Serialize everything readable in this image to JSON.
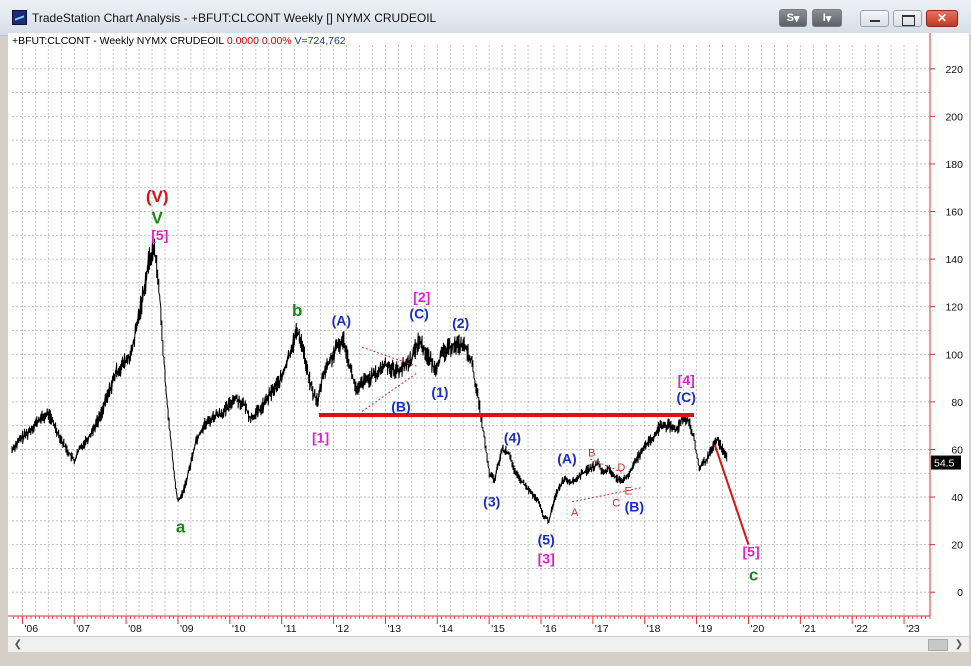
{
  "window": {
    "title": "TradeStation Chart Analysis - +BFUT:CLCONT Weekly [] NYMX CRUDEOIL",
    "btn_s": "S",
    "btn_i": "I",
    "price_badge": "54.5"
  },
  "info": {
    "symbol": "+BFUT:CLCONT - Weekly  NYMX CRUDEOIL",
    "change": "0.0000  0.00%",
    "volume": "V=724,762"
  },
  "colors": {
    "grid": "#b8b8b8",
    "axis": "#e03030",
    "price": "#000000",
    "wave_red": "#dd1111",
    "wave_green": "#138a13",
    "wave_blue": "#1a2bd0",
    "wave_magenta": "#e020d0",
    "sub_red": "#d03030"
  },
  "chart_data": {
    "type": "line",
    "title": "",
    "xlabel": "",
    "ylabel": "",
    "ylim": [
      -10,
      230
    ],
    "xlim": [
      2005.8,
      2023.5
    ],
    "yticks": [
      0,
      20,
      40,
      60,
      80,
      100,
      120,
      140,
      160,
      180,
      200,
      220
    ],
    "xticks": [
      {
        "x": 2006,
        "label": "'06"
      },
      {
        "x": 2007,
        "label": "'07"
      },
      {
        "x": 2008,
        "label": "'08"
      },
      {
        "x": 2009,
        "label": "'09"
      },
      {
        "x": 2010,
        "label": "'10"
      },
      {
        "x": 2011,
        "label": "'11"
      },
      {
        "x": 2012,
        "label": "'12"
      },
      {
        "x": 2013,
        "label": "'13"
      },
      {
        "x": 2014,
        "label": "'14"
      },
      {
        "x": 2015,
        "label": "'15"
      },
      {
        "x": 2016,
        "label": "'16"
      },
      {
        "x": 2017,
        "label": "'17"
      },
      {
        "x": 2018,
        "label": "'18"
      },
      {
        "x": 2019,
        "label": "'19"
      },
      {
        "x": 2020,
        "label": "'20"
      },
      {
        "x": 2021,
        "label": "'21"
      },
      {
        "x": 2022,
        "label": "'22"
      },
      {
        "x": 2023,
        "label": "'23"
      }
    ],
    "series": [
      {
        "x": [
          2005.8,
          2005.95,
          2006.1,
          2006.3,
          2006.5,
          2006.6,
          2006.8,
          2007.0,
          2007.1,
          2007.3,
          2007.5,
          2007.6,
          2007.8,
          2007.95,
          2008.1,
          2008.3,
          2008.45,
          2008.55,
          2008.65,
          2008.75,
          2008.85,
          2008.95,
          2009.0,
          2009.1,
          2009.2,
          2009.35,
          2009.5,
          2009.7,
          2009.9,
          2010.1,
          2010.3,
          2010.4,
          2010.6,
          2010.8,
          2011.0,
          2011.15,
          2011.3,
          2011.4,
          2011.5,
          2011.6,
          2011.7,
          2011.8,
          2011.95,
          2012.1,
          2012.2,
          2012.35,
          2012.45,
          2012.55,
          2012.7,
          2012.85,
          2013.0,
          2013.2,
          2013.3,
          2013.5,
          2013.65,
          2013.8,
          2013.95,
          2014.1,
          2014.3,
          2014.5,
          2014.65,
          2014.8,
          2014.9,
          2015.0,
          2015.1,
          2015.25,
          2015.4,
          2015.5,
          2015.65,
          2015.8,
          2015.95,
          2016.05,
          2016.15,
          2016.3,
          2016.45,
          2016.6,
          2016.8,
          2016.95,
          2017.1,
          2017.2,
          2017.3,
          2017.45,
          2017.55,
          2017.7,
          2017.85,
          2018.0,
          2018.15,
          2018.3,
          2018.45,
          2018.6,
          2018.75,
          2018.85,
          2018.95,
          2019.05,
          2019.2,
          2019.3,
          2019.4,
          2019.5,
          2019.6
        ],
        "y": [
          60,
          64,
          67,
          72,
          75,
          71,
          62,
          55,
          60,
          66,
          74,
          80,
          92,
          96,
          100,
          122,
          140,
          145,
          124,
          90,
          66,
          45,
          38,
          42,
          50,
          64,
          70,
          74,
          76,
          82,
          78,
          73,
          77,
          84,
          90,
          100,
          110,
          104,
          92,
          84,
          80,
          92,
          98,
          104,
          106,
          92,
          84,
          88,
          90,
          92,
          96,
          93,
          94,
          98,
          106,
          100,
          94,
          100,
          104,
          104,
          98,
          80,
          66,
          50,
          47,
          60,
          58,
          50,
          46,
          42,
          38,
          32,
          30,
          42,
          48,
          46,
          50,
          52,
          54,
          50,
          52,
          48,
          46,
          50,
          56,
          62,
          64,
          70,
          70,
          68,
          74,
          72,
          64,
          52,
          56,
          60,
          64,
          60,
          56
        ]
      }
    ],
    "annotations": [
      {
        "text": "(V)",
        "x": 2008.6,
        "y": 164,
        "color": "red",
        "size": "large"
      },
      {
        "text": "V",
        "x": 2008.6,
        "y": 155,
        "color": "green",
        "size": "large"
      },
      {
        "text": "[5]",
        "x": 2008.65,
        "y": 148,
        "color": "magenta"
      },
      {
        "text": "a",
        "x": 2009.05,
        "y": 25,
        "color": "green",
        "size": "large"
      },
      {
        "text": "b",
        "x": 2011.3,
        "y": 116,
        "color": "green",
        "size": "large"
      },
      {
        "text": "[1]",
        "x": 2011.75,
        "y": 63,
        "color": "magenta"
      },
      {
        "text": "(A)",
        "x": 2012.15,
        "y": 112,
        "color": "blue"
      },
      {
        "text": "(B)",
        "x": 2013.3,
        "y": 76,
        "color": "blue"
      },
      {
        "text": "[2]",
        "x": 2013.7,
        "y": 122,
        "color": "magenta"
      },
      {
        "text": "(C)",
        "x": 2013.65,
        "y": 115,
        "color": "blue"
      },
      {
        "text": "(1)",
        "x": 2014.05,
        "y": 82,
        "color": "blue"
      },
      {
        "text": "(2)",
        "x": 2014.45,
        "y": 111,
        "color": "blue"
      },
      {
        "text": "(3)",
        "x": 2015.05,
        "y": 36,
        "color": "blue"
      },
      {
        "text": "(4)",
        "x": 2015.45,
        "y": 63,
        "color": "blue"
      },
      {
        "text": "(5)",
        "x": 2016.1,
        "y": 20,
        "color": "blue"
      },
      {
        "text": "[3]",
        "x": 2016.1,
        "y": 12,
        "color": "magenta"
      },
      {
        "text": "(A)",
        "x": 2016.5,
        "y": 54,
        "color": "blue"
      },
      {
        "text": "A",
        "x": 2016.65,
        "y": 32,
        "color": "red",
        "size": "small"
      },
      {
        "text": "B",
        "x": 2016.98,
        "y": 57,
        "color": "red",
        "size": "small"
      },
      {
        "text": "D",
        "x": 2017.55,
        "y": 51,
        "color": "red",
        "size": "small"
      },
      {
        "text": "C",
        "x": 2017.45,
        "y": 36,
        "color": "red",
        "size": "small"
      },
      {
        "text": "E",
        "x": 2017.68,
        "y": 41,
        "color": "red",
        "size": "small"
      },
      {
        "text": "(B)",
        "x": 2017.8,
        "y": 34,
        "color": "blue"
      },
      {
        "text": "[4]",
        "x": 2018.8,
        "y": 87,
        "color": "magenta"
      },
      {
        "text": "(C)",
        "x": 2018.8,
        "y": 80,
        "color": "blue"
      },
      {
        "text": "[5]",
        "x": 2020.05,
        "y": 15,
        "color": "magenta"
      },
      {
        "text": "c",
        "x": 2020.1,
        "y": 5,
        "color": "green",
        "size": "large"
      }
    ],
    "lines": [
      {
        "x1": 2011.72,
        "y1": 74.5,
        "x2": 2018.95,
        "y2": 74.5,
        "color": "red",
        "width": 4
      },
      {
        "x1": 2019.35,
        "y1": 62,
        "x2": 2020.0,
        "y2": 20,
        "color": "red",
        "width": 2
      },
      {
        "x1": 2012.55,
        "y1": 103,
        "x2": 2013.6,
        "y2": 95,
        "color": "red",
        "dash": true
      },
      {
        "x1": 2012.55,
        "y1": 76,
        "x2": 2013.6,
        "y2": 92,
        "color": "red",
        "dash": true
      },
      {
        "x1": 2016.6,
        "y1": 38,
        "x2": 2017.95,
        "y2": 44,
        "color": "red",
        "dash": true
      },
      {
        "x1": 2016.95,
        "y1": 56,
        "x2": 2017.6,
        "y2": 50,
        "color": "red",
        "dash": true
      }
    ],
    "grid": true,
    "last_price": 54.5
  }
}
